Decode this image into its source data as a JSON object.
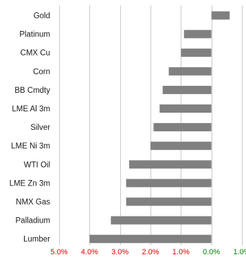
{
  "chart_data": {
    "type": "bar",
    "orientation": "horizontal",
    "categories": [
      "Gold",
      "Platinum",
      "CMX Cu",
      "Corn",
      "BB Cmdty",
      "LME Al 3m",
      "Silver",
      "LME Ni 3m",
      "WTI Oil",
      "LME Zn 3m",
      "NMX Gas",
      "Palladium",
      "Lumber"
    ],
    "values": [
      0.6,
      -0.9,
      -1.0,
      -1.4,
      -1.6,
      -1.7,
      -1.9,
      -2.0,
      -2.7,
      -2.8,
      -2.8,
      -3.3,
      -4.0
    ],
    "value_unit": "%",
    "xlim": [
      -5.0,
      1.0
    ],
    "x_ticks": [
      {
        "value": -5.0,
        "label": "5.0%"
      },
      {
        "value": -4.0,
        "label": "4.0%"
      },
      {
        "value": -3.0,
        "label": "3.0%"
      },
      {
        "value": -2.0,
        "label": "2.0%"
      },
      {
        "value": -1.0,
        "label": "1.0%"
      },
      {
        "value": 0.0,
        "label": "0.0%"
      },
      {
        "value": 1.0,
        "label": "1.0%"
      }
    ],
    "title": "",
    "xlabel": "",
    "ylabel": "",
    "grid": "vertical",
    "legend": "none",
    "colors": {
      "bar": "#808080",
      "grid": "#c8c8c8",
      "negative_tick": "#e00000",
      "nonnegative_tick": "#008000"
    }
  }
}
